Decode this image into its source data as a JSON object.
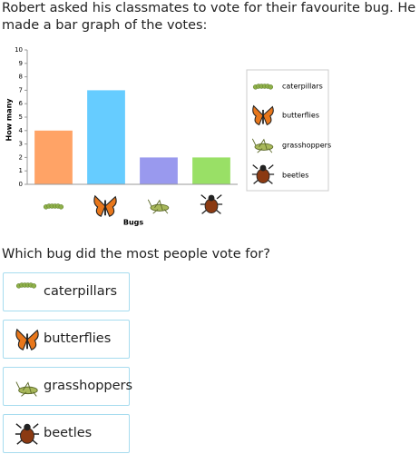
{
  "question": "Robert asked his classmates to vote for their favourite bug. He made a bar graph of the votes:",
  "chart_data": {
    "type": "bar",
    "x_label": "Bugs",
    "y_label": "How many",
    "categories": [
      "caterpillars",
      "butterflies",
      "grasshoppers",
      "beetles"
    ],
    "values": [
      4,
      7,
      2,
      2
    ],
    "colors": [
      "#ffa366",
      "#66ccff",
      "#9999ee",
      "#99e066"
    ],
    "ylim": [
      0,
      10
    ],
    "yticks": [
      0,
      1,
      2,
      3,
      4,
      5,
      6,
      7,
      8,
      9,
      10
    ],
    "grid": false
  },
  "prompt": "Which bug did the most people vote for?",
  "choices": [
    "caterpillars",
    "butterflies",
    "grasshoppers",
    "beetles"
  ]
}
